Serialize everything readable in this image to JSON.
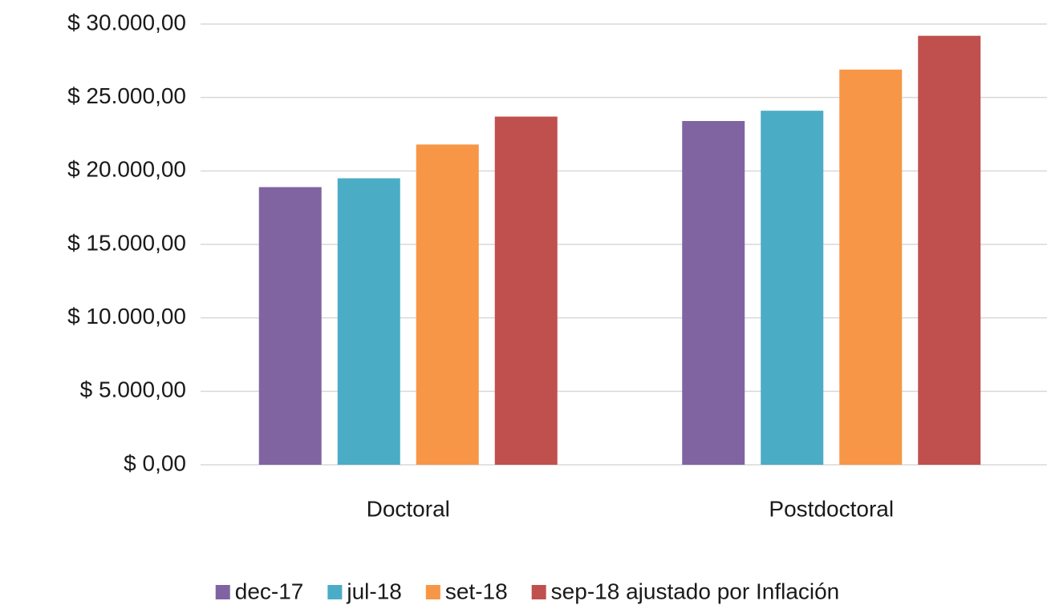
{
  "chart_data": {
    "type": "bar",
    "categories": [
      "Doctoral",
      "Postdoctoral"
    ],
    "series": [
      {
        "name": "dec-17",
        "color": "#8064a2",
        "values": [
          18900,
          23400
        ]
      },
      {
        "name": "jul-18",
        "color": "#4bacc6",
        "values": [
          19500,
          24100
        ]
      },
      {
        "name": "set-18",
        "color": "#f79646",
        "values": [
          21800,
          26900
        ]
      },
      {
        "name": "sep-18 ajustado por Inflación",
        "color": "#c0504d",
        "values": [
          23700,
          29200
        ]
      }
    ],
    "ylim": [
      0,
      30000
    ],
    "yticks": [
      {
        "value": 0,
        "label": "$ 0,00"
      },
      {
        "value": 5000,
        "label": "$ 5.000,00"
      },
      {
        "value": 10000,
        "label": "$ 10.000,00"
      },
      {
        "value": 15000,
        "label": "$ 15.000,00"
      },
      {
        "value": 20000,
        "label": "$ 20.000,00"
      },
      {
        "value": 25000,
        "label": "$ 25.000,00"
      },
      {
        "value": 30000,
        "label": "$ 30.000,00"
      }
    ],
    "grid": true,
    "legend": "bottom"
  }
}
